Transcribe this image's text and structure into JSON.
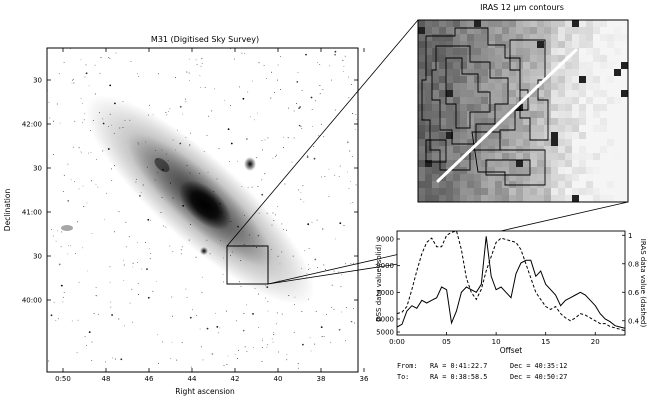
{
  "main_image": {
    "title": "M31 (Digitised Sky Survey)",
    "xlabel": "Right ascension",
    "ylabel": "Declination",
    "x_ticks": [
      "0:50",
      "48",
      "46",
      "44",
      "42",
      "40",
      "38",
      "36"
    ],
    "y_ticks": [
      "30",
      "42:00",
      "30",
      "41:00",
      "30",
      "40:00"
    ]
  },
  "inset": {
    "title": "IRAS 12 μm contours"
  },
  "chart_data": {
    "type": "line",
    "title": "",
    "xlabel": "Offset",
    "ylabel": "DSS data value (solid)",
    "y2label": "IRAS data value (dashed)",
    "x_ticks": [
      "0:00",
      "05",
      "10",
      "15",
      "20"
    ],
    "xlim": [
      0,
      23
    ],
    "ylim": [
      5400,
      9300
    ],
    "y_ticks": [
      "5000",
      "6000",
      "7000",
      "8000",
      "9000"
    ],
    "y2lim": [
      0.3,
      1.03
    ],
    "y2_ticks": [
      "0.4",
      "0.6",
      "0.8",
      "1"
    ],
    "grid": false,
    "series": [
      {
        "axis": "left",
        "style": "solid",
        "x": [
          0,
          0.5,
          1,
          1.5,
          2,
          2.5,
          3,
          3.5,
          4,
          4.5,
          5,
          5.5,
          6,
          6.5,
          7,
          7.5,
          8,
          8.5,
          9,
          9.5,
          10,
          10.5,
          11,
          11.5,
          12,
          12.5,
          13,
          13.5,
          14,
          14.5,
          15,
          15.5,
          16,
          16.5,
          17,
          17.5,
          18,
          18.5,
          19,
          19.5,
          20,
          20.5,
          21,
          21.5,
          22,
          22.5,
          23
        ],
        "values": [
          5700,
          5800,
          6300,
          6500,
          6400,
          6700,
          6600,
          6700,
          6800,
          7200,
          7100,
          5850,
          6300,
          7000,
          7200,
          7100,
          7000,
          7300,
          9100,
          7600,
          7100,
          7200,
          7000,
          6800,
          7700,
          8100,
          8200,
          8200,
          7600,
          7800,
          7300,
          7100,
          6900,
          6500,
          6700,
          6800,
          6900,
          7000,
          6900,
          6700,
          6500,
          6200,
          6000,
          5900,
          5750,
          5700,
          5650
        ]
      },
      {
        "axis": "right",
        "style": "dashed",
        "x": [
          0,
          0.5,
          1,
          1.5,
          2,
          2.5,
          3,
          3.5,
          4,
          4.5,
          5,
          5.5,
          6,
          6.5,
          7,
          7.5,
          8,
          8.5,
          9,
          9.5,
          10,
          10.5,
          11,
          11.5,
          12,
          12.5,
          13,
          13.5,
          14,
          14.5,
          15,
          15.5,
          16,
          16.5,
          17,
          17.5,
          18,
          18.5,
          19,
          19.5,
          20,
          20.5,
          21,
          21.5,
          22,
          22.5,
          23
        ],
        "values": [
          0.45,
          0.46,
          0.5,
          0.62,
          0.75,
          0.87,
          0.95,
          0.98,
          0.92,
          0.92,
          1.0,
          1.02,
          1.03,
          0.9,
          0.7,
          0.6,
          0.55,
          0.62,
          0.75,
          0.85,
          0.95,
          0.98,
          0.97,
          0.96,
          0.95,
          0.9,
          0.8,
          0.7,
          0.6,
          0.55,
          0.5,
          0.48,
          0.5,
          0.45,
          0.42,
          0.4,
          0.42,
          0.45,
          0.44,
          0.42,
          0.4,
          0.38,
          0.38,
          0.36,
          0.35,
          0.34,
          0.33
        ]
      }
    ]
  },
  "coords": {
    "from_label": "From:",
    "from_ra": "RA = 0:41:22.7",
    "from_dec": "Dec = 40:35:12",
    "to_label": "To:",
    "to_ra": "RA = 0:38:58.5",
    "to_dec": "Dec = 40:50:27"
  },
  "colors": {
    "ink": "#000000",
    "background": "#ffffff",
    "slice_line": "#ffffff"
  }
}
